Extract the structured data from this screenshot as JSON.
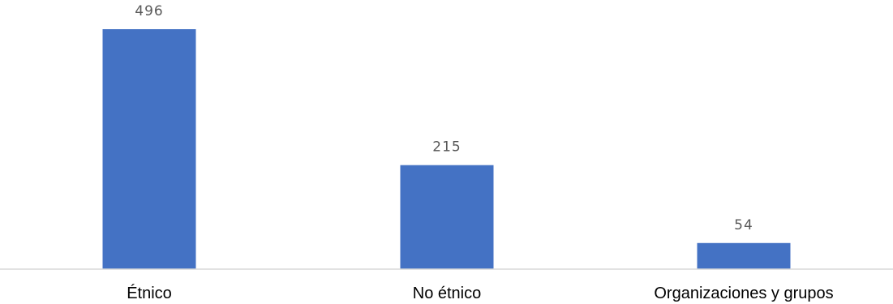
{
  "chart_data": {
    "type": "bar",
    "categories": [
      "Étnico",
      "No étnico",
      "Organizaciones y grupos"
    ],
    "values": [
      496,
      215,
      54
    ],
    "ylim": [
      0,
      510
    ],
    "grid": false,
    "legend": "none",
    "data_labels": true,
    "colors": {
      "bar": "#4472C4",
      "axis": "#d9d9d9",
      "value_label": "#595959",
      "category_label": "#000000"
    }
  }
}
